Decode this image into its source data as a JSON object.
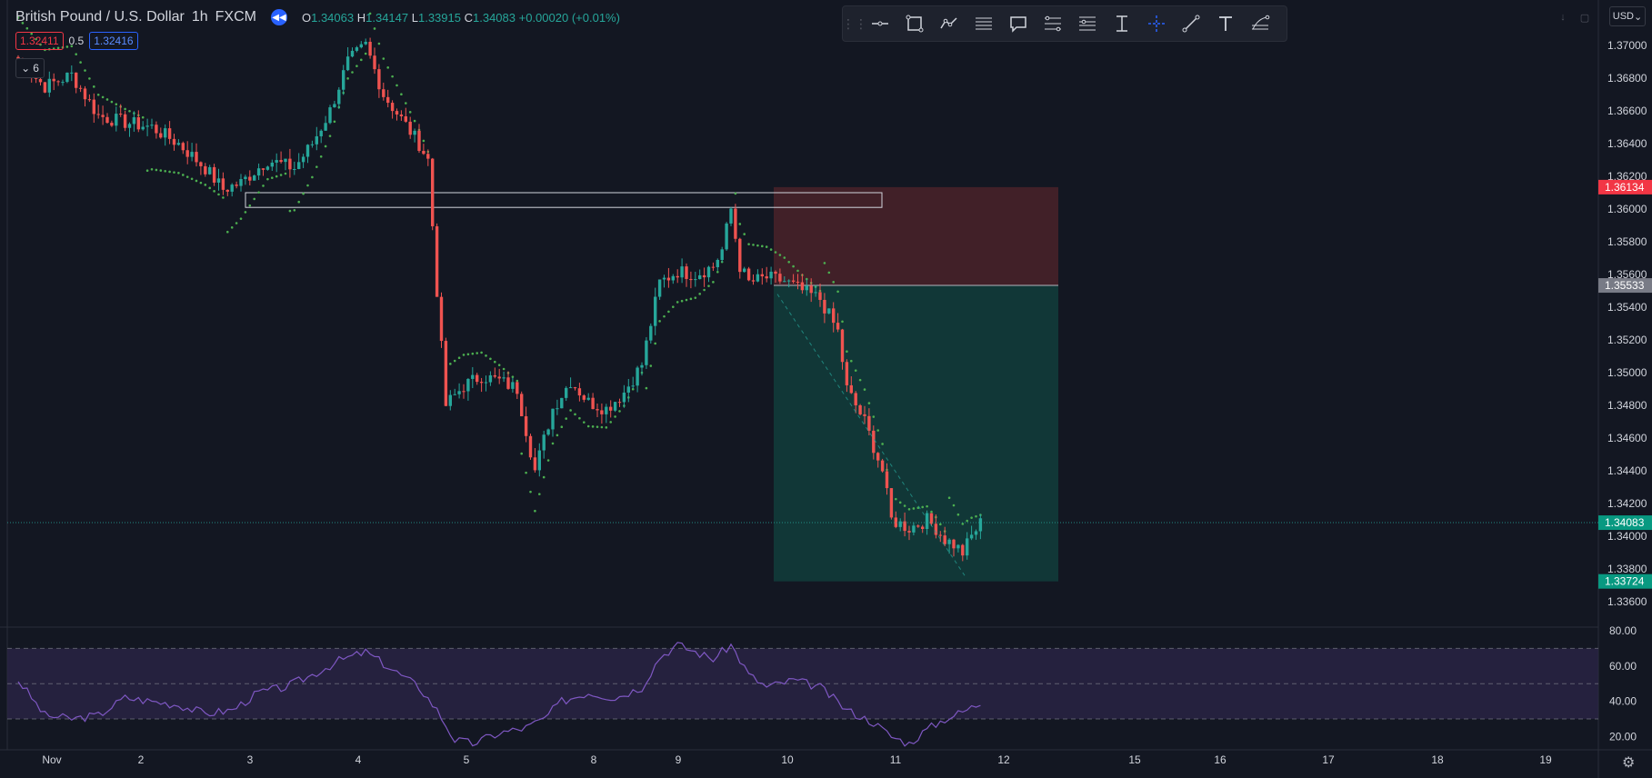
{
  "header": {
    "symbol": "British Pound / U.S. Dollar",
    "interval": "1h",
    "exchange": "FXCM",
    "open_label": "O",
    "open": "1.34063",
    "high_label": "H",
    "high": "1.34147",
    "low_label": "L",
    "low": "1.33915",
    "close_label": "C",
    "close": "1.34083",
    "change": "+0.00020 (+0.01%)",
    "sell_price": "1.32411",
    "spread": "0.5",
    "buy_price": "1.32416",
    "indicators_count": "6"
  },
  "toolbar": {
    "tools": [
      "grip-icon",
      "horizontal-line-icon",
      "rectangle-icon",
      "path-icon",
      "parallel-channel-icon",
      "callout-icon",
      "fib-retracement-icon",
      "fib-levels-icon",
      "date-range-icon",
      "crosshair-icon",
      "trend-line-icon",
      "text-icon",
      "fib-fan-icon"
    ]
  },
  "currency": "USD",
  "colors": {
    "background": "#131722",
    "up": "#26a69a",
    "down": "#ef5350",
    "sar": "#4caf50",
    "rsi_line": "#7e57c2",
    "rsi_band": "#2a2446",
    "stop_zone": "#4a2229",
    "target_zone": "#123d3b",
    "price_tag_last": "#089981",
    "price_tag_stop": "#f23645",
    "price_tag_entry": "#787b86"
  },
  "chart_data": {
    "type": "candlestick",
    "y_axis": {
      "ticks": [
        "1.37000",
        "1.36800",
        "1.36600",
        "1.36400",
        "1.36200",
        "1.36000",
        "1.35800",
        "1.35600",
        "1.35400",
        "1.35200",
        "1.35000",
        "1.34800",
        "1.34600",
        "1.34400",
        "1.34200",
        "1.34000",
        "1.33800",
        "1.33600"
      ],
      "range": [
        1.3556,
        1.372
      ]
    },
    "x_axis": {
      "ticks": [
        "Nov",
        "2",
        "3",
        "4",
        "5",
        "8",
        "9",
        "10",
        "11",
        "12",
        "15",
        "16",
        "17",
        "18",
        "19"
      ]
    },
    "price_tags": {
      "stop": "1.36134",
      "entry": "1.35533",
      "last": "1.34083",
      "target": "1.33724"
    },
    "position": {
      "type": "short",
      "entry": 1.35533,
      "stop": 1.36134,
      "target": 1.33724
    },
    "supply_zone": {
      "top": 1.361,
      "bottom": 1.3601
    },
    "anchors": [
      {
        "i": 0,
        "p": 1.369
      },
      {
        "i": 6,
        "p": 1.3675
      },
      {
        "i": 12,
        "p": 1.3682
      },
      {
        "i": 18,
        "p": 1.3657
      },
      {
        "i": 24,
        "p": 1.3653
      },
      {
        "i": 30,
        "p": 1.365
      },
      {
        "i": 36,
        "p": 1.364
      },
      {
        "i": 42,
        "p": 1.3625
      },
      {
        "i": 46,
        "p": 1.3612
      },
      {
        "i": 50,
        "p": 1.3616
      },
      {
        "i": 56,
        "p": 1.363
      },
      {
        "i": 62,
        "p": 1.3625
      },
      {
        "i": 66,
        "p": 1.364
      },
      {
        "i": 70,
        "p": 1.366
      },
      {
        "i": 74,
        "p": 1.369
      },
      {
        "i": 78,
        "p": 1.37
      },
      {
        "i": 82,
        "p": 1.367
      },
      {
        "i": 86,
        "p": 1.3655
      },
      {
        "i": 90,
        "p": 1.364
      },
      {
        "i": 92,
        "p": 1.363
      },
      {
        "i": 94,
        "p": 1.355
      },
      {
        "i": 96,
        "p": 1.348
      },
      {
        "i": 100,
        "p": 1.3492
      },
      {
        "i": 104,
        "p": 1.3498
      },
      {
        "i": 108,
        "p": 1.3495
      },
      {
        "i": 112,
        "p": 1.349
      },
      {
        "i": 114,
        "p": 1.3465
      },
      {
        "i": 116,
        "p": 1.344
      },
      {
        "i": 120,
        "p": 1.3478
      },
      {
        "i": 124,
        "p": 1.3495
      },
      {
        "i": 128,
        "p": 1.3482
      },
      {
        "i": 132,
        "p": 1.3478
      },
      {
        "i": 136,
        "p": 1.3488
      },
      {
        "i": 140,
        "p": 1.3505
      },
      {
        "i": 144,
        "p": 1.3555
      },
      {
        "i": 148,
        "p": 1.3562
      },
      {
        "i": 152,
        "p": 1.356
      },
      {
        "i": 156,
        "p": 1.3565
      },
      {
        "i": 158,
        "p": 1.3575
      },
      {
        "i": 160,
        "p": 1.36
      },
      {
        "i": 162,
        "p": 1.3565
      },
      {
        "i": 164,
        "p": 1.3555
      },
      {
        "i": 168,
        "p": 1.3558
      },
      {
        "i": 172,
        "p": 1.3556
      },
      {
        "i": 176,
        "p": 1.355
      },
      {
        "i": 180,
        "p": 1.3545
      },
      {
        "i": 184,
        "p": 1.3525
      },
      {
        "i": 186,
        "p": 1.349
      },
      {
        "i": 190,
        "p": 1.347
      },
      {
        "i": 194,
        "p": 1.344
      },
      {
        "i": 196,
        "p": 1.341
      },
      {
        "i": 200,
        "p": 1.3405
      },
      {
        "i": 204,
        "p": 1.341
      },
      {
        "i": 206,
        "p": 1.3405
      },
      {
        "i": 208,
        "p": 1.3398
      },
      {
        "i": 210,
        "p": 1.3395
      },
      {
        "i": 212,
        "p": 1.339
      },
      {
        "i": 214,
        "p": 1.34
      },
      {
        "i": 216,
        "p": 1.3408
      }
    ],
    "sar_segments": [
      {
        "from": 0,
        "to": 28,
        "side": "above"
      },
      {
        "from": 29,
        "to": 46,
        "side": "below"
      },
      {
        "from": 47,
        "to": 60,
        "side": "below"
      },
      {
        "from": 61,
        "to": 78,
        "side": "below"
      },
      {
        "from": 79,
        "to": 92,
        "side": "above"
      },
      {
        "from": 93,
        "to": 112,
        "side": "above"
      },
      {
        "from": 113,
        "to": 140,
        "side": "below"
      },
      {
        "from": 141,
        "to": 160,
        "side": "below"
      },
      {
        "from": 161,
        "to": 180,
        "side": "above"
      },
      {
        "from": 181,
        "to": 208,
        "side": "above"
      },
      {
        "from": 209,
        "to": 216,
        "side": "above"
      }
    ],
    "rsi": {
      "ticks": [
        "80.00",
        "60.00",
        "40.00",
        "20.00"
      ],
      "levels": [
        70,
        50,
        30
      ],
      "anchors": [
        {
          "i": 0,
          "v": 52
        },
        {
          "i": 6,
          "v": 32
        },
        {
          "i": 12,
          "v": 30
        },
        {
          "i": 18,
          "v": 32
        },
        {
          "i": 24,
          "v": 42
        },
        {
          "i": 30,
          "v": 40
        },
        {
          "i": 36,
          "v": 38
        },
        {
          "i": 42,
          "v": 33
        },
        {
          "i": 48,
          "v": 35
        },
        {
          "i": 54,
          "v": 45
        },
        {
          "i": 60,
          "v": 48
        },
        {
          "i": 66,
          "v": 55
        },
        {
          "i": 72,
          "v": 63
        },
        {
          "i": 78,
          "v": 68
        },
        {
          "i": 84,
          "v": 58
        },
        {
          "i": 90,
          "v": 48
        },
        {
          "i": 94,
          "v": 35
        },
        {
          "i": 98,
          "v": 18
        },
        {
          "i": 102,
          "v": 16
        },
        {
          "i": 108,
          "v": 22
        },
        {
          "i": 114,
          "v": 25
        },
        {
          "i": 118,
          "v": 30
        },
        {
          "i": 122,
          "v": 40
        },
        {
          "i": 128,
          "v": 45
        },
        {
          "i": 134,
          "v": 42
        },
        {
          "i": 140,
          "v": 48
        },
        {
          "i": 144,
          "v": 65
        },
        {
          "i": 148,
          "v": 72
        },
        {
          "i": 152,
          "v": 68
        },
        {
          "i": 156,
          "v": 64
        },
        {
          "i": 160,
          "v": 72
        },
        {
          "i": 164,
          "v": 55
        },
        {
          "i": 168,
          "v": 48
        },
        {
          "i": 174,
          "v": 52
        },
        {
          "i": 180,
          "v": 48
        },
        {
          "i": 186,
          "v": 35
        },
        {
          "i": 192,
          "v": 28
        },
        {
          "i": 196,
          "v": 20
        },
        {
          "i": 200,
          "v": 16
        },
        {
          "i": 204,
          "v": 24
        },
        {
          "i": 208,
          "v": 30
        },
        {
          "i": 212,
          "v": 34
        },
        {
          "i": 216,
          "v": 39
        }
      ]
    }
  }
}
